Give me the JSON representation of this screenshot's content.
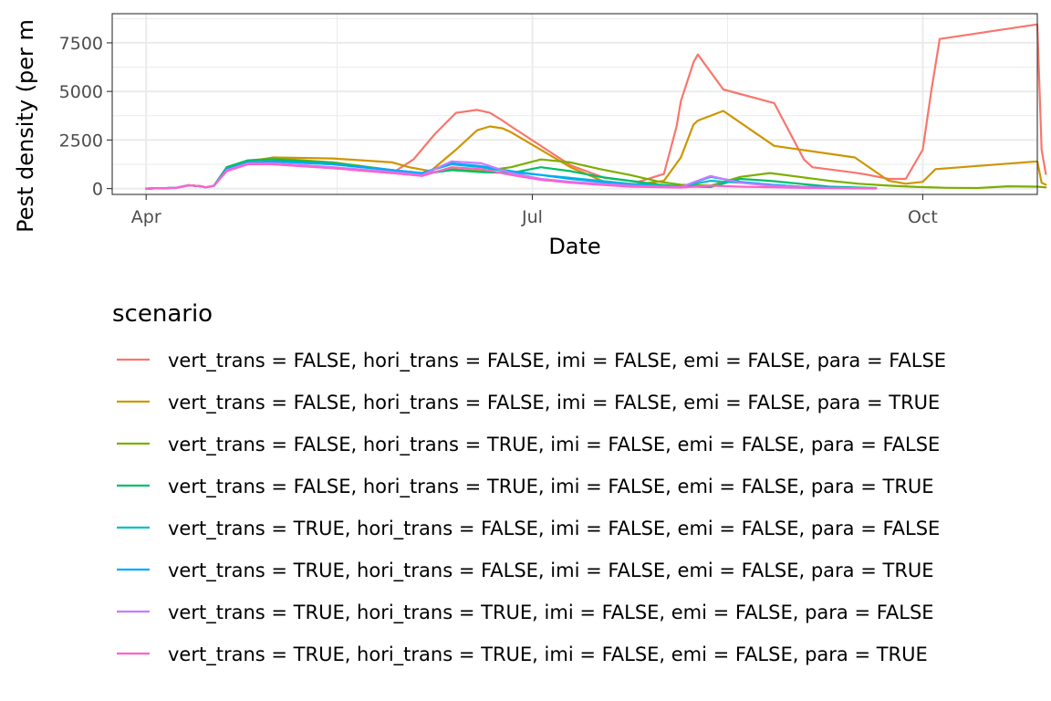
{
  "chart_data": {
    "type": "line",
    "title": "",
    "xlabel": "Date",
    "ylabel": "Pest density (per m",
    "x_ticks": [
      "Apr",
      "Jul",
      "Oct"
    ],
    "y_ticks": [
      "0",
      "2500",
      "5000",
      "7500"
    ],
    "ylim": [
      -300,
      9000
    ],
    "xlim": [
      "2020-03-24",
      "2020-10-28"
    ],
    "grid": true,
    "legend_title": "scenario",
    "legend_position": "bottom",
    "series": [
      {
        "name": "vert_trans = FALSE, hori_trans = FALSE, imi = FALSE, emi = FALSE, para = FALSE",
        "color": "#F8766D",
        "x": [
          "2020-04-01",
          "2020-04-08",
          "2020-04-11",
          "2020-04-14",
          "2020-04-15",
          "2020-04-17",
          "2020-04-20",
          "2020-04-25",
          "2020-05-01",
          "2020-05-15",
          "2020-05-29",
          "2020-06-03",
          "2020-06-08",
          "2020-06-13",
          "2020-06-18",
          "2020-06-21",
          "2020-06-24",
          "2020-06-26",
          "2020-07-10",
          "2020-07-18",
          "2020-07-22",
          "2020-07-26",
          "2020-08-01",
          "2020-08-04",
          "2020-08-05",
          "2020-08-08",
          "2020-08-09",
          "2020-08-15",
          "2020-08-27",
          "2020-09-03",
          "2020-09-05",
          "2020-09-15",
          "2020-09-17",
          "2020-09-23",
          "2020-09-27",
          "2020-10-01",
          "2020-10-03",
          "2020-10-05",
          "2020-10-28",
          "2020-10-29",
          "2020-10-30"
        ],
        "values": [
          0,
          40,
          170,
          120,
          60,
          150,
          1100,
          1300,
          1250,
          1050,
          800,
          1500,
          2800,
          3900,
          4050,
          3900,
          3500,
          3200,
          1200,
          550,
          450,
          350,
          750,
          3200,
          4500,
          6500,
          6900,
          5100,
          4400,
          1500,
          1100,
          820,
          750,
          500,
          500,
          2000,
          5000,
          7700,
          8450,
          2000,
          750
        ]
      },
      {
        "name": "vert_trans = FALSE, hori_trans = FALSE, imi = FALSE, emi = FALSE, para = TRUE",
        "color": "#CD9600",
        "x": [
          "2020-04-01",
          "2020-04-08",
          "2020-04-11",
          "2020-04-14",
          "2020-04-15",
          "2020-04-17",
          "2020-04-20",
          "2020-04-25",
          "2020-05-01",
          "2020-05-15",
          "2020-05-29",
          "2020-06-02",
          "2020-06-07",
          "2020-06-13",
          "2020-06-18",
          "2020-06-21",
          "2020-06-24",
          "2020-06-26",
          "2020-07-10",
          "2020-07-18",
          "2020-07-22",
          "2020-07-26",
          "2020-08-01",
          "2020-08-05",
          "2020-08-08",
          "2020-08-09",
          "2020-08-15",
          "2020-08-27",
          "2020-09-15",
          "2020-09-23",
          "2020-09-27",
          "2020-10-01",
          "2020-10-04",
          "2020-10-28",
          "2020-10-29",
          "2020-10-30"
        ],
        "values": [
          0,
          40,
          170,
          120,
          60,
          150,
          1100,
          1400,
          1600,
          1550,
          1350,
          1100,
          900,
          2000,
          3000,
          3200,
          3100,
          2900,
          1100,
          350,
          250,
          220,
          400,
          1600,
          3300,
          3500,
          4000,
          2200,
          1600,
          400,
          250,
          350,
          1000,
          1400,
          300,
          200
        ]
      },
      {
        "name": "vert_trans = FALSE, hori_trans = TRUE, imi = FALSE, emi = FALSE, para = FALSE",
        "color": "#7CAE00",
        "x": [
          "2020-04-01",
          "2020-04-08",
          "2020-04-11",
          "2020-04-14",
          "2020-04-15",
          "2020-04-17",
          "2020-04-20",
          "2020-04-25",
          "2020-05-01",
          "2020-05-15",
          "2020-05-29",
          "2020-06-05",
          "2020-06-12",
          "2020-06-19",
          "2020-06-26",
          "2020-07-03",
          "2020-07-10",
          "2020-07-17",
          "2020-07-24",
          "2020-07-31",
          "2020-08-05",
          "2020-08-12",
          "2020-08-19",
          "2020-08-26",
          "2020-09-02",
          "2020-09-09",
          "2020-09-16",
          "2020-09-23",
          "2020-09-30",
          "2020-10-07",
          "2020-10-14",
          "2020-10-21",
          "2020-10-28",
          "2020-10-30"
        ],
        "values": [
          0,
          40,
          170,
          120,
          60,
          150,
          1100,
          1450,
          1550,
          1350,
          950,
          750,
          1000,
          900,
          1100,
          1500,
          1350,
          1000,
          700,
          350,
          200,
          150,
          600,
          800,
          600,
          400,
          250,
          150,
          80,
          40,
          30,
          120,
          100,
          60
        ]
      },
      {
        "name": "vert_trans = FALSE, hori_trans = TRUE, imi = FALSE, emi = FALSE, para = TRUE",
        "color": "#00BE67",
        "x": [
          "2020-04-01",
          "2020-04-08",
          "2020-04-11",
          "2020-04-14",
          "2020-04-15",
          "2020-04-17",
          "2020-04-20",
          "2020-04-25",
          "2020-05-01",
          "2020-05-15",
          "2020-05-29",
          "2020-06-05",
          "2020-06-12",
          "2020-06-19",
          "2020-06-26",
          "2020-07-03",
          "2020-07-10",
          "2020-07-17",
          "2020-07-24",
          "2020-07-31",
          "2020-08-05",
          "2020-08-12",
          "2020-08-19",
          "2020-08-26",
          "2020-09-02",
          "2020-09-09",
          "2020-09-16",
          "2020-09-20"
        ],
        "values": [
          0,
          40,
          170,
          120,
          60,
          150,
          1100,
          1450,
          1500,
          1300,
          950,
          750,
          950,
          850,
          800,
          1100,
          900,
          600,
          400,
          200,
          120,
          80,
          500,
          400,
          250,
          100,
          50,
          30
        ]
      },
      {
        "name": "vert_trans = TRUE, hori_trans = FALSE, imi = FALSE, emi = FALSE, para = FALSE",
        "color": "#00BFC4",
        "x": [
          "2020-04-01",
          "2020-04-08",
          "2020-04-11",
          "2020-04-14",
          "2020-04-15",
          "2020-04-17",
          "2020-04-20",
          "2020-04-25",
          "2020-05-01",
          "2020-05-15",
          "2020-05-29",
          "2020-06-05",
          "2020-06-12",
          "2020-06-19",
          "2020-06-26",
          "2020-07-03",
          "2020-07-10",
          "2020-07-17",
          "2020-07-24",
          "2020-07-31",
          "2020-08-05",
          "2020-08-12",
          "2020-08-19",
          "2020-08-26",
          "2020-09-02",
          "2020-09-09",
          "2020-09-16",
          "2020-09-20"
        ],
        "values": [
          0,
          40,
          170,
          120,
          60,
          150,
          1000,
          1350,
          1400,
          1250,
          950,
          800,
          1250,
          1100,
          850,
          700,
          550,
          400,
          250,
          150,
          100,
          400,
          300,
          200,
          100,
          50,
          30,
          20
        ]
      },
      {
        "name": "vert_trans = TRUE, hori_trans = FALSE, imi = FALSE, emi = FALSE, para = TRUE",
        "color": "#00A9FF",
        "x": [
          "2020-04-01",
          "2020-04-08",
          "2020-04-11",
          "2020-04-14",
          "2020-04-15",
          "2020-04-17",
          "2020-04-20",
          "2020-04-25",
          "2020-05-01",
          "2020-05-15",
          "2020-05-29",
          "2020-06-05",
          "2020-06-12",
          "2020-06-19",
          "2020-06-26",
          "2020-07-03",
          "2020-07-10",
          "2020-07-17",
          "2020-07-24",
          "2020-07-31",
          "2020-08-05",
          "2020-08-12",
          "2020-08-19",
          "2020-08-26",
          "2020-09-02",
          "2020-09-09",
          "2020-09-16",
          "2020-09-20"
        ],
        "values": [
          0,
          40,
          170,
          120,
          60,
          150,
          1000,
          1350,
          1400,
          1250,
          950,
          800,
          1300,
          1150,
          900,
          700,
          500,
          350,
          200,
          120,
          80,
          600,
          350,
          200,
          100,
          50,
          30,
          20
        ]
      },
      {
        "name": "vert_trans = TRUE, hori_trans = TRUE, imi = FALSE, emi = FALSE, para = FALSE",
        "color": "#C77CFF",
        "x": [
          "2020-04-01",
          "2020-04-08",
          "2020-04-11",
          "2020-04-14",
          "2020-04-15",
          "2020-04-17",
          "2020-04-20",
          "2020-04-25",
          "2020-05-01",
          "2020-05-15",
          "2020-05-29",
          "2020-06-05",
          "2020-06-12",
          "2020-06-19",
          "2020-06-26",
          "2020-07-03",
          "2020-07-10",
          "2020-07-17",
          "2020-07-24",
          "2020-07-31",
          "2020-08-05",
          "2020-08-12",
          "2020-08-19",
          "2020-08-26",
          "2020-09-02",
          "2020-09-09",
          "2020-09-16",
          "2020-09-20"
        ],
        "values": [
          0,
          40,
          170,
          120,
          60,
          150,
          950,
          1300,
          1300,
          1100,
          850,
          700,
          1400,
          1300,
          800,
          500,
          350,
          250,
          150,
          100,
          80,
          650,
          300,
          150,
          80,
          40,
          20,
          15
        ]
      },
      {
        "name": "vert_trans = TRUE, hori_trans = TRUE, imi = FALSE, emi = FALSE, para = TRUE",
        "color": "#FF61CC",
        "x": [
          "2020-04-01",
          "2020-04-08",
          "2020-04-11",
          "2020-04-14",
          "2020-04-15",
          "2020-04-17",
          "2020-04-20",
          "2020-04-25",
          "2020-05-01",
          "2020-05-15",
          "2020-05-29",
          "2020-06-05",
          "2020-06-12",
          "2020-06-19",
          "2020-06-26",
          "2020-07-03",
          "2020-07-10",
          "2020-07-17",
          "2020-07-24",
          "2020-07-31",
          "2020-08-05",
          "2020-08-12",
          "2020-08-19",
          "2020-08-26",
          "2020-09-02",
          "2020-09-09",
          "2020-09-16",
          "2020-09-20"
        ],
        "values": [
          0,
          40,
          170,
          120,
          60,
          150,
          900,
          1250,
          1250,
          1050,
          800,
          650,
          1100,
          1000,
          700,
          450,
          300,
          200,
          100,
          70,
          50,
          150,
          100,
          70,
          40,
          20,
          10,
          5
        ]
      }
    ]
  }
}
